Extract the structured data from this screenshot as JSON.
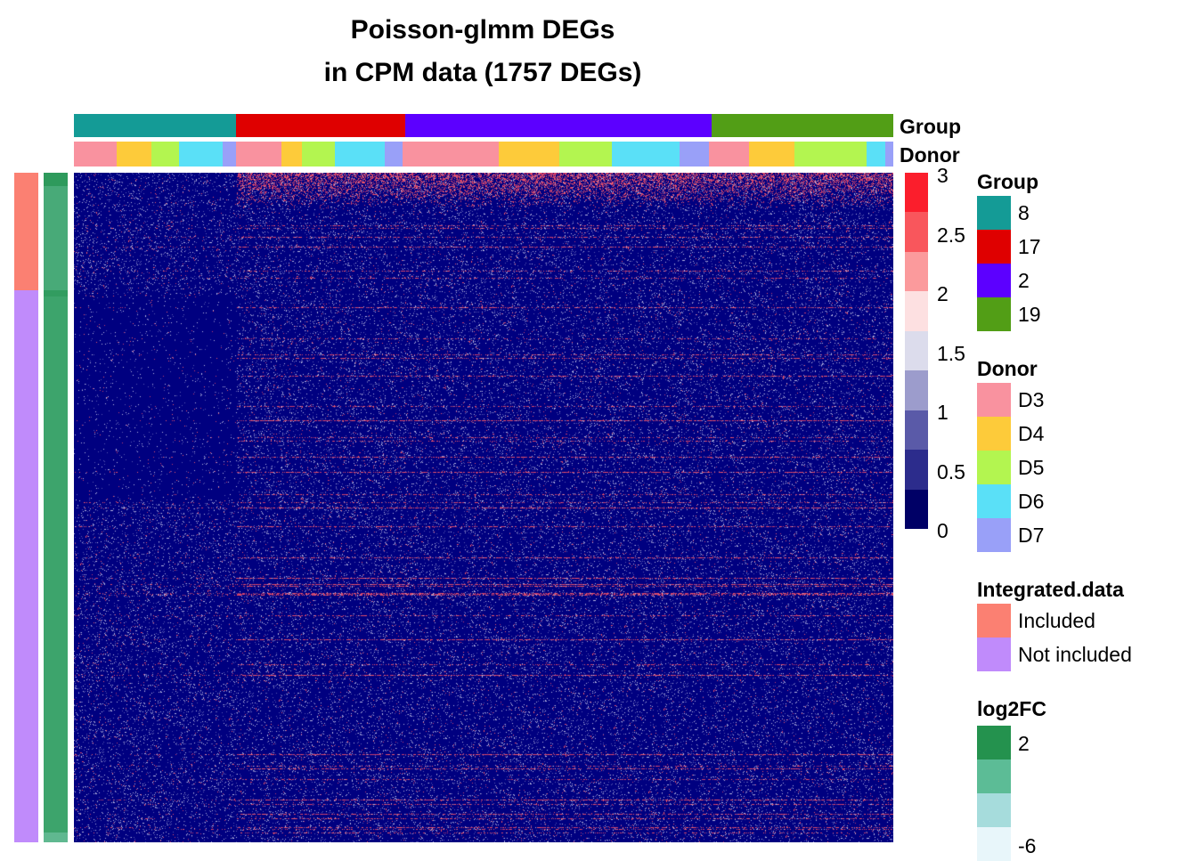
{
  "chart_data": {
    "type": "heatmap",
    "title": "Poisson-glmm DEGs",
    "subtitle": "in CPM data (1757 DEGs)",
    "color_scale": {
      "ticks": [
        "3",
        "2.5",
        "2",
        "1.5",
        "1",
        "0.5",
        "0"
      ],
      "colors": [
        "#fb1e2c",
        "#f9565c",
        "#fb9a9c",
        "#fde0e1",
        "#dcdcec",
        "#9c9ccc",
        "#5a5aa8",
        "#2c2c8c",
        "#000066"
      ]
    },
    "column_annotations": [
      {
        "name": "Group",
        "segments": [
          {
            "label": "8",
            "color": "#149b96",
            "fraction": 0.198
          },
          {
            "label": "17",
            "color": "#df0000",
            "fraction": 0.206
          },
          {
            "label": "2",
            "color": "#5c00ff",
            "fraction": 0.374
          },
          {
            "label": "19",
            "color": "#529e16",
            "fraction": 0.222
          }
        ]
      },
      {
        "name": "Donor",
        "segments": [
          {
            "label": "D3",
            "color": "#f9929f",
            "fraction": 0.052
          },
          {
            "label": "D4",
            "color": "#fdcb3a",
            "fraction": 0.043
          },
          {
            "label": "D5",
            "color": "#b3f550",
            "fraction": 0.033
          },
          {
            "label": "D6",
            "color": "#5ae0f7",
            "fraction": 0.054
          },
          {
            "label": "D7",
            "color": "#99a0f8",
            "fraction": 0.016
          },
          {
            "label": "D3",
            "color": "#f9929f",
            "fraction": 0.055
          },
          {
            "label": "D4",
            "color": "#fdcb3a",
            "fraction": 0.025
          },
          {
            "label": "D5",
            "color": "#b3f550",
            "fraction": 0.041
          },
          {
            "label": "D6",
            "color": "#5ae0f7",
            "fraction": 0.06
          },
          {
            "label": "D7",
            "color": "#99a0f8",
            "fraction": 0.022
          },
          {
            "label": "D3",
            "color": "#f9929f",
            "fraction": 0.118
          },
          {
            "label": "D4",
            "color": "#fdcb3a",
            "fraction": 0.073
          },
          {
            "label": "D5",
            "color": "#b3f550",
            "fraction": 0.065
          },
          {
            "label": "D6",
            "color": "#5ae0f7",
            "fraction": 0.082
          },
          {
            "label": "D7",
            "color": "#99a0f8",
            "fraction": 0.036
          },
          {
            "label": "D3",
            "color": "#f9929f",
            "fraction": 0.049
          },
          {
            "label": "D4",
            "color": "#fdcb3a",
            "fraction": 0.055
          },
          {
            "label": "D5",
            "color": "#b3f550",
            "fraction": 0.089
          },
          {
            "label": "D6",
            "color": "#5ae0f7",
            "fraction": 0.022
          },
          {
            "label": "D7",
            "color": "#99a0f8",
            "fraction": 0.01
          }
        ]
      }
    ],
    "row_annotations": [
      {
        "name": "Integrated.data",
        "segments": [
          {
            "label": "Included",
            "color": "#fb8072",
            "fraction": 0.175
          },
          {
            "label": "Not included",
            "color": "#c08bfb",
            "fraction": 0.825
          }
        ]
      },
      {
        "name": "log2FC",
        "segments": [
          {
            "color": "#2e9a5c",
            "fraction": 0.02
          },
          {
            "color": "#48aa78",
            "fraction": 0.155
          },
          {
            "color": "#329c60",
            "fraction": 0.01
          },
          {
            "color": "#3da46c",
            "fraction": 0.8
          },
          {
            "color": "#60b890",
            "fraction": 0.015
          }
        ]
      }
    ],
    "legends": {
      "group": {
        "title": "Group",
        "items": [
          {
            "label": "8",
            "color": "#149b96"
          },
          {
            "label": "17",
            "color": "#df0000"
          },
          {
            "label": "2",
            "color": "#5c00ff"
          },
          {
            "label": "19",
            "color": "#529e16"
          }
        ]
      },
      "donor": {
        "title": "Donor",
        "items": [
          {
            "label": "D3",
            "color": "#f9929f"
          },
          {
            "label": "D4",
            "color": "#fdcb3a"
          },
          {
            "label": "D5",
            "color": "#b3f550"
          },
          {
            "label": "D6",
            "color": "#5ae0f7"
          },
          {
            "label": "D7",
            "color": "#99a0f8"
          }
        ]
      },
      "integrated": {
        "title": "Integrated.data",
        "items": [
          {
            "label": "Included",
            "color": "#fb8072"
          },
          {
            "label": "Not included",
            "color": "#c08bfb"
          }
        ]
      },
      "log2fc": {
        "title": "log2FC",
        "max_label": "2",
        "min_label": "-6",
        "colors": [
          "#24924e",
          "#5cbc96",
          "#a6dcdc",
          "#e8f6fa"
        ]
      }
    }
  }
}
